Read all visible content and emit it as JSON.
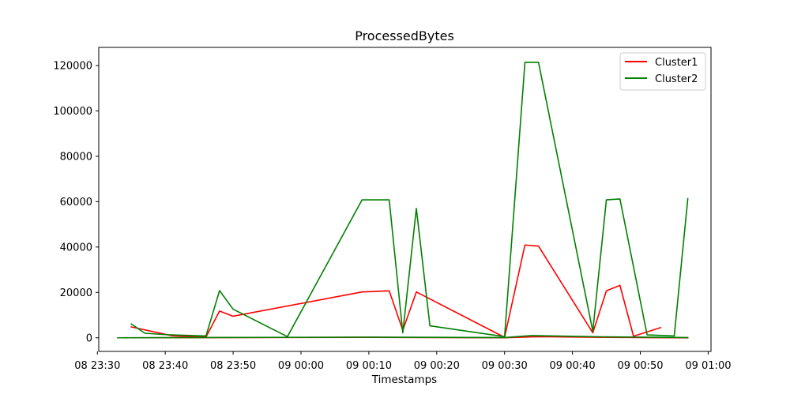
{
  "chart_data": {
    "type": "line",
    "title": "ProcessedBytes",
    "xlabel": "Timestamps",
    "ylabel": "",
    "x_axis_type": "time",
    "xlim": [
      "2024-01-08T23:30:12",
      "2024-01-09T01:00:25"
    ],
    "ylim": [
      -6000,
      128000
    ],
    "grid": false,
    "legend_position": "top-right",
    "x_ticks": [
      {
        "t": "2024-01-08T23:30:00",
        "label": "08 23:30"
      },
      {
        "t": "2024-01-08T23:40:00",
        "label": "08 23:40"
      },
      {
        "t": "2024-01-08T23:50:00",
        "label": "08 23:50"
      },
      {
        "t": "2024-01-09T00:00:00",
        "label": "09 00:00"
      },
      {
        "t": "2024-01-09T00:10:00",
        "label": "09 00:10"
      },
      {
        "t": "2024-01-09T00:20:00",
        "label": "09 00:20"
      },
      {
        "t": "2024-01-09T00:30:00",
        "label": "09 00:30"
      },
      {
        "t": "2024-01-09T00:40:00",
        "label": "09 00:40"
      },
      {
        "t": "2024-01-09T00:50:00",
        "label": "09 00:50"
      },
      {
        "t": "2024-01-09T01:00:00",
        "label": "09 01:00"
      }
    ],
    "y_ticks": [
      {
        "v": 0,
        "label": "0"
      },
      {
        "v": 20000,
        "label": "20000"
      },
      {
        "v": 40000,
        "label": "40000"
      },
      {
        "v": 60000,
        "label": "60000"
      },
      {
        "v": 80000,
        "label": "80000"
      },
      {
        "v": 100000,
        "label": "100000"
      },
      {
        "v": 120000,
        "label": "120000"
      }
    ],
    "series": [
      {
        "name": "Cluster1",
        "color": "#ff0000",
        "lines": [
          {
            "x": [
              "2024-01-08T23:35:00",
              "2024-01-08T23:41:00",
              "2024-01-08T23:46:00",
              "2024-01-08T23:48:00",
              "2024-01-08T23:50:00",
              "2024-01-09T00:09:00",
              "2024-01-09T00:13:00",
              "2024-01-09T00:15:00",
              "2024-01-09T00:17:00",
              "2024-01-09T00:30:00",
              "2024-01-09T00:33:00",
              "2024-01-09T00:35:00",
              "2024-01-09T00:43:00",
              "2024-01-09T00:45:00",
              "2024-01-09T00:47:00",
              "2024-01-09T00:49:00",
              "2024-01-09T00:53:00"
            ],
            "y": [
              4800,
              900,
              300,
              11800,
              9500,
              20200,
              20700,
              3300,
              20200,
              200,
              40900,
              40400,
              2200,
              20700,
              23100,
              700,
              4500
            ]
          },
          {
            "x": [
              "2024-01-08T23:33:00",
              "2024-01-09T00:10:00",
              "2024-01-09T00:30:00",
              "2024-01-09T00:35:00",
              "2024-01-09T00:45:00",
              "2024-01-09T00:57:00"
            ],
            "y": [
              0,
              200,
              0,
              500,
              200,
              0
            ]
          }
        ]
      },
      {
        "name": "Cluster2",
        "color": "#008000",
        "lines": [
          {
            "x": [
              "2024-01-08T23:35:00",
              "2024-01-08T23:37:00",
              "2024-01-08T23:40:00",
              "2024-01-08T23:46:00",
              "2024-01-08T23:48:00",
              "2024-01-08T23:50:00",
              "2024-01-08T23:58:00",
              "2024-01-09T00:09:00",
              "2024-01-09T00:13:00",
              "2024-01-09T00:15:00",
              "2024-01-09T00:17:00",
              "2024-01-09T00:19:00",
              "2024-01-09T00:30:00",
              "2024-01-09T00:33:00",
              "2024-01-09T00:35:00",
              "2024-01-09T00:43:00",
              "2024-01-09T00:45:00",
              "2024-01-09T00:47:00",
              "2024-01-09T00:51:00",
              "2024-01-09T00:55:00",
              "2024-01-09T00:57:00"
            ],
            "y": [
              6100,
              2000,
              1400,
              800,
              20800,
              12600,
              500,
              60800,
              60800,
              2200,
              57000,
              5300,
              500,
              121400,
              121400,
              2900,
              60800,
              61200,
              1300,
              800,
              61300
            ]
          },
          {
            "x": [
              "2024-01-08T23:33:00",
              "2024-01-09T00:10:00",
              "2024-01-09T00:30:00",
              "2024-01-09T00:34:00",
              "2024-01-09T00:45:00",
              "2024-01-09T00:57:00"
            ],
            "y": [
              0,
              300,
              100,
              1000,
              400,
              100
            ]
          }
        ]
      }
    ]
  }
}
